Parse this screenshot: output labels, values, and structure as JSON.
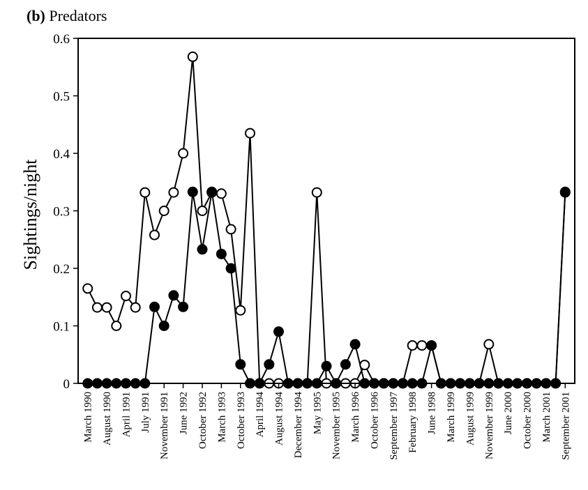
{
  "panel": {
    "letter": "(b)",
    "title": "Predators"
  },
  "chart_data": {
    "type": "line",
    "title": "(b) Predators",
    "xlabel": "",
    "ylabel": "Sightings/night",
    "ylim": [
      0,
      0.6
    ],
    "yticks": [
      "0",
      "0.1",
      "0.2",
      "0.3",
      "0.4",
      "0.5",
      "0.6"
    ],
    "grid": false,
    "legend": "none",
    "xlim": [
      -1,
      51
    ],
    "xticks": [
      {
        "i": 0,
        "label": "March 1990"
      },
      {
        "i": 2,
        "label": "August 1990"
      },
      {
        "i": 4,
        "label": "April 1991"
      },
      {
        "i": 6,
        "label": "July 1991"
      },
      {
        "i": 8,
        "label": "November 1991"
      },
      {
        "i": 10,
        "label": "June 1992"
      },
      {
        "i": 12,
        "label": "October 1992"
      },
      {
        "i": 14,
        "label": "March 1993"
      },
      {
        "i": 16,
        "label": "October 1993"
      },
      {
        "i": 18,
        "label": "April 1994"
      },
      {
        "i": 20,
        "label": "August 1994"
      },
      {
        "i": 22,
        "label": "December 1994"
      },
      {
        "i": 24,
        "label": "May 1995"
      },
      {
        "i": 26,
        "label": "November 1995"
      },
      {
        "i": 28,
        "label": "March 1996"
      },
      {
        "i": 30,
        "label": "October 1996"
      },
      {
        "i": 32,
        "label": "September 1997"
      },
      {
        "i": 34,
        "label": "February 1998"
      },
      {
        "i": 36,
        "label": "June 1998"
      },
      {
        "i": 38,
        "label": "March 1999"
      },
      {
        "i": 40,
        "label": "August 1999"
      },
      {
        "i": 42,
        "label": "November 1999"
      },
      {
        "i": 44,
        "label": "June 2000"
      },
      {
        "i": 46,
        "label": "October 2000"
      },
      {
        "i": 48,
        "label": "March 2001"
      },
      {
        "i": 50,
        "label": "September 2001"
      }
    ],
    "series": [
      {
        "marker": "open-circle",
        "color": "#000000",
        "points": [
          [
            0,
            0.165
          ],
          [
            1,
            0.132
          ],
          [
            2,
            0.132
          ],
          [
            3,
            0.1
          ],
          [
            4,
            0.152
          ],
          [
            5,
            0.132
          ],
          [
            6,
            0.332
          ],
          [
            7,
            0.258
          ],
          [
            8,
            0.3
          ],
          [
            9,
            0.332
          ],
          [
            10,
            0.4
          ],
          [
            11,
            0.568
          ],
          [
            12,
            0.3
          ],
          [
            13,
            0.332
          ],
          [
            14,
            0.33
          ],
          [
            15,
            0.268
          ],
          [
            16,
            0.127
          ],
          [
            17,
            0.435
          ],
          [
            18,
            0.0
          ],
          [
            19,
            0.0
          ],
          [
            20,
            0.0
          ],
          [
            21,
            0.0
          ],
          [
            22,
            0.0
          ],
          [
            23,
            0.0
          ],
          [
            24,
            0.332
          ],
          [
            25,
            0.0
          ],
          [
            26,
            0.0
          ],
          [
            27,
            0.0
          ],
          [
            28,
            0.0
          ],
          [
            29,
            0.032
          ],
          [
            30,
            0.0
          ],
          [
            31,
            0.0
          ],
          [
            32,
            0.0
          ],
          [
            33,
            0.0
          ],
          [
            34,
            0.066
          ],
          [
            35,
            0.066
          ],
          [
            36,
            0.066
          ],
          [
            37,
            0.0
          ],
          [
            38,
            0.0
          ],
          [
            39,
            0.0
          ],
          [
            40,
            0.0
          ],
          [
            41,
            0.0
          ],
          [
            42,
            0.068
          ],
          [
            43,
            0.0
          ],
          [
            44,
            0.0
          ],
          [
            45,
            0.0
          ],
          [
            46,
            0.0
          ],
          [
            47,
            0.0
          ],
          [
            48,
            0.0
          ],
          [
            49,
            0.0
          ],
          [
            50,
            0.332
          ]
        ]
      },
      {
        "marker": "filled-circle",
        "color": "#000000",
        "points": [
          [
            0,
            0.0
          ],
          [
            1,
            0.0
          ],
          [
            2,
            0.0
          ],
          [
            3,
            0.0
          ],
          [
            4,
            0.0
          ],
          [
            5,
            0.0
          ],
          [
            6,
            0.0
          ],
          [
            7,
            0.133
          ],
          [
            8,
            0.1
          ],
          [
            9,
            0.153
          ],
          [
            10,
            0.133
          ],
          [
            11,
            0.333
          ],
          [
            12,
            0.233
          ],
          [
            13,
            0.333
          ],
          [
            14,
            0.225
          ],
          [
            15,
            0.2
          ],
          [
            16,
            0.033
          ],
          [
            17,
            0.0
          ],
          [
            18,
            0.0
          ],
          [
            19,
            0.033
          ],
          [
            20,
            0.09
          ],
          [
            21,
            0.0
          ],
          [
            22,
            0.0
          ],
          [
            23,
            0.0
          ],
          [
            24,
            0.0
          ],
          [
            25,
            0.03
          ],
          [
            26,
            0.0
          ],
          [
            27,
            0.033
          ],
          [
            28,
            0.068
          ],
          [
            29,
            0.0
          ],
          [
            30,
            0.0
          ],
          [
            31,
            0.0
          ],
          [
            32,
            0.0
          ],
          [
            33,
            0.0
          ],
          [
            34,
            0.0
          ],
          [
            35,
            0.0
          ],
          [
            36,
            0.066
          ],
          [
            37,
            0.0
          ],
          [
            38,
            0.0
          ],
          [
            39,
            0.0
          ],
          [
            40,
            0.0
          ],
          [
            41,
            0.0
          ],
          [
            42,
            0.0
          ],
          [
            43,
            0.0
          ],
          [
            44,
            0.0
          ],
          [
            45,
            0.0
          ],
          [
            46,
            0.0
          ],
          [
            47,
            0.0
          ],
          [
            48,
            0.0
          ],
          [
            49,
            0.0
          ],
          [
            50,
            0.333
          ]
        ]
      }
    ]
  }
}
